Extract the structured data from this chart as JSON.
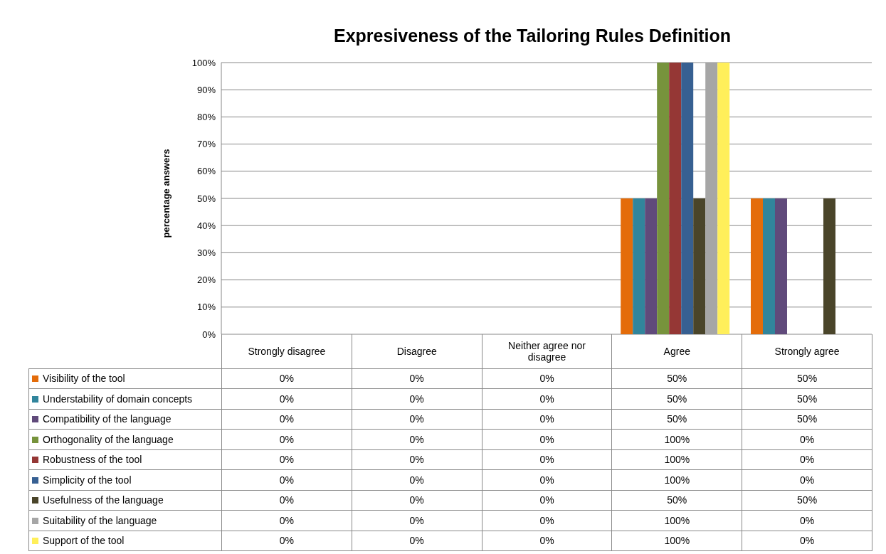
{
  "chart_data": {
    "type": "bar",
    "title": "Expresiveness of the Tailoring Rules Definition",
    "ylabel": "percentage answers",
    "categories": [
      "Strongly disagree",
      "Disagree",
      "Neither agree nor disagree",
      "Agree",
      "Strongly agree"
    ],
    "series": [
      {
        "name": "Visibility of the tool",
        "color": "#e46c0a",
        "values": [
          0,
          0,
          0,
          50,
          50
        ],
        "value_labels": [
          "0%",
          "0%",
          "0%",
          "50%",
          "50%"
        ]
      },
      {
        "name": "Understability of domain concepts",
        "color": "#31859c",
        "values": [
          0,
          0,
          0,
          50,
          50
        ],
        "value_labels": [
          "0%",
          "0%",
          "0%",
          "50%",
          "50%"
        ]
      },
      {
        "name": "Compatibility of the language",
        "color": "#604a7b",
        "values": [
          0,
          0,
          0,
          50,
          50
        ],
        "value_labels": [
          "0%",
          "0%",
          "0%",
          "50%",
          "50%"
        ]
      },
      {
        "name": "Orthogonality of the language",
        "color": "#77933c",
        "values": [
          0,
          0,
          0,
          100,
          0
        ],
        "value_labels": [
          "0%",
          "0%",
          "0%",
          "100%",
          "0%"
        ]
      },
      {
        "name": "Robustness of the tool",
        "color": "#953735",
        "values": [
          0,
          0,
          0,
          100,
          0
        ],
        "value_labels": [
          "0%",
          "0%",
          "0%",
          "100%",
          "0%"
        ]
      },
      {
        "name": "Simplicity of the tool",
        "color": "#376092",
        "values": [
          0,
          0,
          0,
          100,
          0
        ],
        "value_labels": [
          "0%",
          "0%",
          "0%",
          "100%",
          "0%"
        ]
      },
      {
        "name": "Usefulness of the language",
        "color": "#4a452a",
        "values": [
          0,
          0,
          0,
          50,
          50
        ],
        "value_labels": [
          "0%",
          "0%",
          "0%",
          "50%",
          "50%"
        ]
      },
      {
        "name": "Suitability of the language",
        "color": "#a6a6a6",
        "values": [
          0,
          0,
          0,
          100,
          0
        ],
        "value_labels": [
          "0%",
          "0%",
          "0%",
          "100%",
          "0%"
        ]
      },
      {
        "name": "Support of the tool",
        "color": "#ffef5a",
        "values": [
          0,
          0,
          0,
          100,
          0
        ],
        "value_labels": [
          "0%",
          "0%",
          "0%",
          "100%",
          "0%"
        ]
      }
    ],
    "ylim": [
      0,
      100
    ],
    "yticks": [
      {
        "value": 0,
        "label": "0%"
      },
      {
        "value": 10,
        "label": "10%"
      },
      {
        "value": 20,
        "label": "20%"
      },
      {
        "value": 30,
        "label": "30%"
      },
      {
        "value": 40,
        "label": "40%"
      },
      {
        "value": 50,
        "label": "50%"
      },
      {
        "value": 60,
        "label": "60%"
      },
      {
        "value": 70,
        "label": "70%"
      },
      {
        "value": 80,
        "label": "80%"
      },
      {
        "value": 90,
        "label": "90%"
      },
      {
        "value": 100,
        "label": "100%"
      }
    ],
    "grid": "y",
    "legend": "bottom left"
  }
}
